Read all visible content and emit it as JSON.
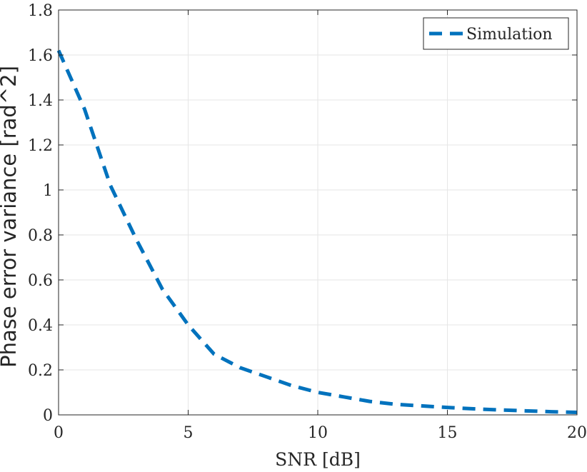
{
  "chart_data": {
    "type": "line",
    "title": "",
    "xlabel": "SNR [dB]",
    "ylabel": "Phase error variance [rad^2]",
    "xlim": [
      0,
      20
    ],
    "ylim": [
      0,
      1.8
    ],
    "xticks": [
      0,
      5,
      10,
      15,
      20
    ],
    "yticks": [
      0,
      0.2,
      0.4,
      0.6,
      0.8,
      1,
      1.2,
      1.4,
      1.6,
      1.8
    ],
    "xtick_labels": [
      "0",
      "5",
      "10",
      "15",
      "20"
    ],
    "ytick_labels": [
      "0",
      "0.2",
      "0.4",
      "0.6",
      "0.8",
      "1",
      "1.2",
      "1.4",
      "1.6",
      "1.8"
    ],
    "grid": true,
    "legend": {
      "placement": "top-right",
      "entries": [
        "Simulation"
      ]
    },
    "series": [
      {
        "name": "Simulation",
        "color": "#0072BD",
        "line_style": "dashed",
        "x": [
          0,
          1,
          2,
          3,
          4,
          5,
          6,
          7,
          8,
          9,
          10,
          11,
          12,
          13,
          14,
          15,
          16,
          17,
          18,
          19,
          20
        ],
        "y": [
          1.62,
          1.36,
          1.02,
          0.78,
          0.56,
          0.4,
          0.27,
          0.21,
          0.17,
          0.13,
          0.1,
          0.08,
          0.06,
          0.047,
          0.04,
          0.033,
          0.027,
          0.022,
          0.018,
          0.014,
          0.011
        ]
      }
    ]
  }
}
